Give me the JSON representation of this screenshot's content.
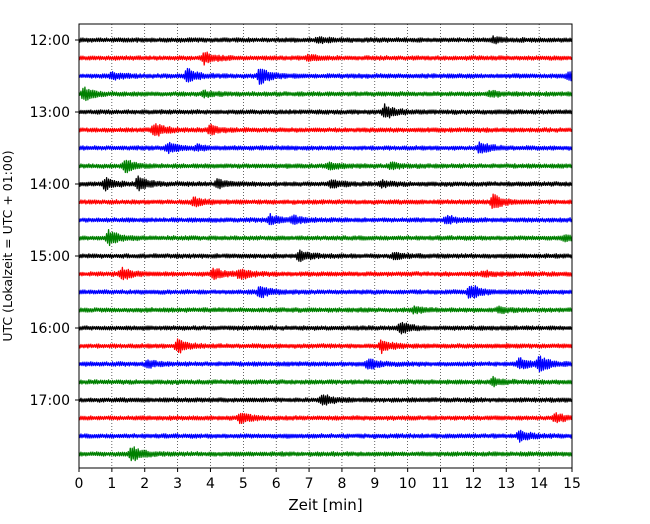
{
  "chart_data": {
    "type": "line",
    "subtype": "seismogram-helicorder",
    "xlabel": "Zeit  [min]",
    "ylabel": "UTC (Lokalzeit = UTC + 01:00)",
    "xlim": [
      0,
      15
    ],
    "x_ticks": [
      0,
      1,
      2,
      3,
      4,
      5,
      6,
      7,
      8,
      9,
      10,
      11,
      12,
      13,
      14,
      15
    ],
    "x_tick_labels": [
      "0",
      "1",
      "2",
      "3",
      "4",
      "5",
      "6",
      "7",
      "8",
      "9",
      "10",
      "11",
      "12",
      "13",
      "14",
      "15"
    ],
    "vertical_grid": true,
    "grid_style": "dotted",
    "row_colors": [
      "#000000",
      "#ff0000",
      "#0000ff",
      "#008000"
    ],
    "minutes_per_row": 15,
    "row_count": 24,
    "y_tick_labels": [
      {
        "row": 0,
        "label": "12:00"
      },
      {
        "row": 4,
        "label": "13:00"
      },
      {
        "row": 8,
        "label": "14:00"
      },
      {
        "row": 12,
        "label": "15:00"
      },
      {
        "row": 16,
        "label": "16:00"
      },
      {
        "row": 20,
        "label": "17:00"
      }
    ],
    "events": [
      {
        "row": 0,
        "minute": 7.3,
        "amp": 0.35
      },
      {
        "row": 0,
        "minute": 12.6,
        "amp": 0.3
      },
      {
        "row": 1,
        "minute": 3.8,
        "amp": 0.75
      },
      {
        "row": 1,
        "minute": 7.0,
        "amp": 0.35
      },
      {
        "row": 2,
        "minute": 1.0,
        "amp": 0.4
      },
      {
        "row": 2,
        "minute": 3.3,
        "amp": 0.9
      },
      {
        "row": 2,
        "minute": 5.5,
        "amp": 1.0
      },
      {
        "row": 2,
        "minute": 14.9,
        "amp": 0.6
      },
      {
        "row": 3,
        "minute": 0.15,
        "amp": 0.8
      },
      {
        "row": 3,
        "minute": 3.8,
        "amp": 0.3
      },
      {
        "row": 3,
        "minute": 12.5,
        "amp": 0.35
      },
      {
        "row": 4,
        "minute": 9.3,
        "amp": 0.9
      },
      {
        "row": 5,
        "minute": 2.3,
        "amp": 0.9
      },
      {
        "row": 5,
        "minute": 4.0,
        "amp": 0.55
      },
      {
        "row": 6,
        "minute": 2.7,
        "amp": 0.6
      },
      {
        "row": 6,
        "minute": 3.6,
        "amp": 0.3
      },
      {
        "row": 6,
        "minute": 12.2,
        "amp": 0.75
      },
      {
        "row": 7,
        "minute": 1.4,
        "amp": 0.85
      },
      {
        "row": 7,
        "minute": 7.6,
        "amp": 0.4
      },
      {
        "row": 7,
        "minute": 9.5,
        "amp": 0.3
      },
      {
        "row": 8,
        "minute": 0.8,
        "amp": 0.7
      },
      {
        "row": 8,
        "minute": 1.8,
        "amp": 0.85
      },
      {
        "row": 8,
        "minute": 4.2,
        "amp": 0.55
      },
      {
        "row": 8,
        "minute": 7.7,
        "amp": 0.5
      },
      {
        "row": 8,
        "minute": 9.2,
        "amp": 0.35
      },
      {
        "row": 9,
        "minute": 3.5,
        "amp": 0.5
      },
      {
        "row": 9,
        "minute": 12.6,
        "amp": 0.9
      },
      {
        "row": 10,
        "minute": 5.8,
        "amp": 0.7
      },
      {
        "row": 10,
        "minute": 6.5,
        "amp": 0.45
      },
      {
        "row": 10,
        "minute": 11.2,
        "amp": 0.45
      },
      {
        "row": 11,
        "minute": 0.9,
        "amp": 0.95
      },
      {
        "row": 11,
        "minute": 14.8,
        "amp": 0.3
      },
      {
        "row": 12,
        "minute": 6.7,
        "amp": 0.65
      },
      {
        "row": 12,
        "minute": 9.6,
        "amp": 0.35
      },
      {
        "row": 13,
        "minute": 1.3,
        "amp": 0.75
      },
      {
        "row": 13,
        "minute": 4.1,
        "amp": 0.7
      },
      {
        "row": 13,
        "minute": 4.9,
        "amp": 0.65
      },
      {
        "row": 13,
        "minute": 12.3,
        "amp": 0.3
      },
      {
        "row": 14,
        "minute": 5.5,
        "amp": 0.7
      },
      {
        "row": 14,
        "minute": 11.9,
        "amp": 0.95
      },
      {
        "row": 15,
        "minute": 10.2,
        "amp": 0.35
      },
      {
        "row": 15,
        "minute": 12.8,
        "amp": 0.3
      },
      {
        "row": 16,
        "minute": 9.8,
        "amp": 0.7
      },
      {
        "row": 17,
        "minute": 3.0,
        "amp": 0.9
      },
      {
        "row": 17,
        "minute": 9.2,
        "amp": 0.75
      },
      {
        "row": 18,
        "minute": 2.1,
        "amp": 0.4
      },
      {
        "row": 18,
        "minute": 8.8,
        "amp": 0.65
      },
      {
        "row": 18,
        "minute": 13.4,
        "amp": 0.7
      },
      {
        "row": 18,
        "minute": 14.0,
        "amp": 1.0
      },
      {
        "row": 19,
        "minute": 12.6,
        "amp": 0.45
      },
      {
        "row": 20,
        "minute": 7.4,
        "amp": 0.75
      },
      {
        "row": 21,
        "minute": 4.9,
        "amp": 0.65
      },
      {
        "row": 21,
        "minute": 14.5,
        "amp": 0.5
      },
      {
        "row": 22,
        "minute": 13.4,
        "amp": 0.65
      },
      {
        "row": 23,
        "minute": 1.6,
        "amp": 0.95
      }
    ]
  }
}
